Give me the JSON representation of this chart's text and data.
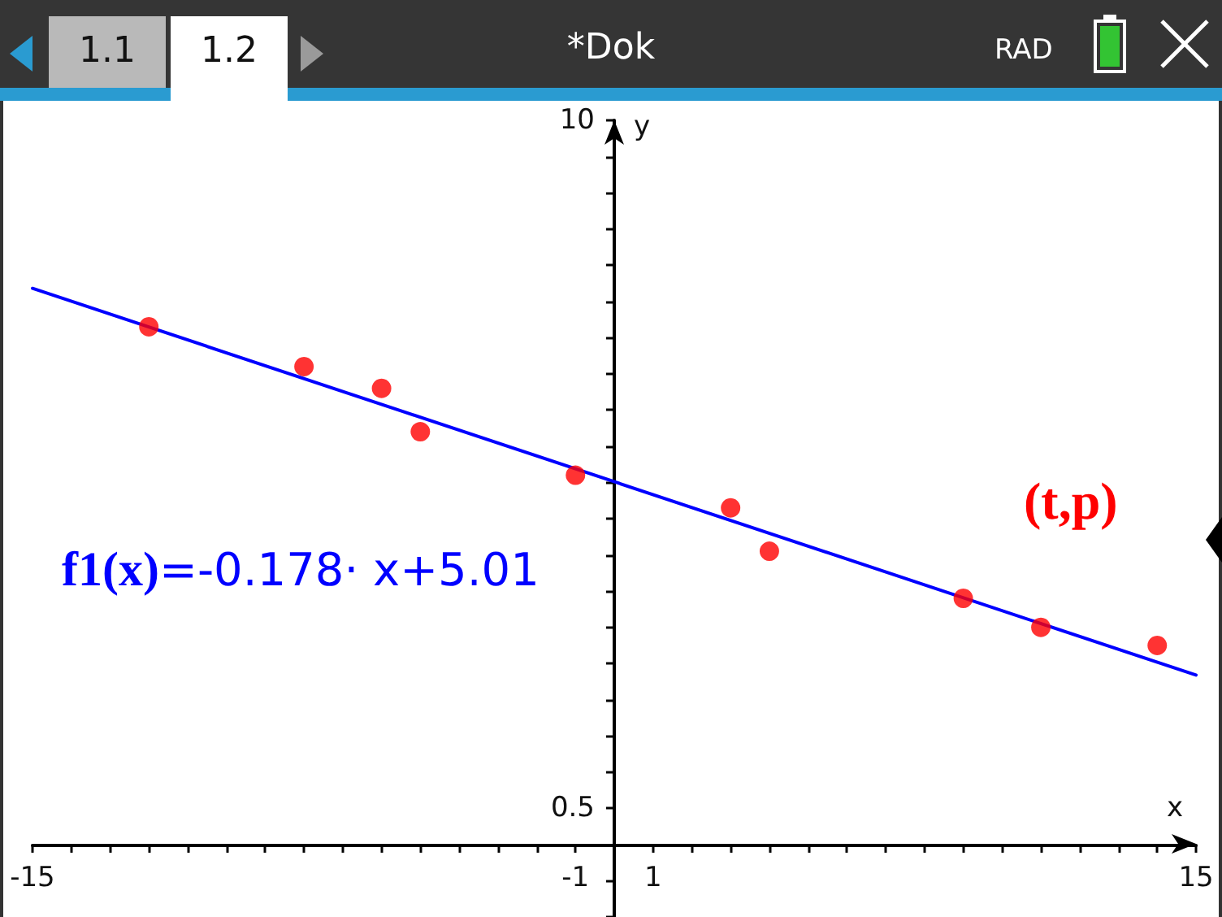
{
  "chart_data": {
    "type": "scatter",
    "title": "*Dok",
    "xlabel": "x",
    "ylabel": "y",
    "annotations": [
      "1.1",
      "1.2",
      "RAD"
    ],
    "xlim": [
      -15,
      15
    ],
    "ylim": [
      -1,
      10
    ],
    "xticks": [
      -15,
      {
        "value": -14,
        "label": null
      },
      {
        "value": -13,
        "label": null
      },
      {
        "value": -12,
        "label": null
      },
      {
        "value": -11,
        "label": null
      },
      {
        "value": -10,
        "label": null
      },
      {
        "value": -9,
        "label": null
      },
      {
        "value": -8,
        "label": null
      },
      {
        "value": -7,
        "label": null
      },
      {
        "value": -6,
        "label": null
      },
      {
        "value": -5,
        "label": null
      },
      {
        "value": -4,
        "label": null
      },
      {
        "value": -3,
        "label": null
      },
      {
        "value": -2,
        "label": null
      },
      -1,
      {
        "value": 0,
        "label": null
      },
      1,
      {
        "value": 2,
        "label": null
      },
      {
        "value": 3,
        "label": null
      },
      {
        "value": 4,
        "label": null
      },
      {
        "value": 5,
        "label": null
      },
      {
        "value": 6,
        "label": null
      },
      {
        "value": 7,
        "label": null
      },
      {
        "value": 8,
        "label": null
      },
      {
        "value": 9,
        "label": null
      },
      {
        "value": 10,
        "label": null
      },
      {
        "value": 11,
        "label": null
      },
      {
        "value": 12,
        "label": null
      },
      {
        "value": 13,
        "label": null
      },
      {
        "value": 14,
        "label": null
      },
      15
    ],
    "yticks": [
      {
        "value": -1,
        "label": null
      },
      {
        "value": -0.5,
        "label": null
      },
      {
        "value": 0,
        "label": null
      },
      0.5,
      {
        "value": 1,
        "label": null
      },
      {
        "value": 1.5,
        "label": null
      },
      {
        "value": 2,
        "label": null
      },
      {
        "value": 2.5,
        "label": null
      },
      {
        "value": 3,
        "label": null
      },
      {
        "value": 3.5,
        "label": null
      },
      {
        "value": 4,
        "label": null
      },
      {
        "value": 4.5,
        "label": null
      },
      {
        "value": 5,
        "label": null
      },
      {
        "value": 5.5,
        "label": null
      },
      {
        "value": 6,
        "label": null
      },
      {
        "value": 6.5,
        "label": null
      },
      {
        "value": 7,
        "label": null
      },
      {
        "value": 7.5,
        "label": null
      },
      {
        "value": 8,
        "label": null
      },
      {
        "value": 8.5,
        "label": null
      },
      {
        "value": 9,
        "label": null
      },
      {
        "value": 9.5,
        "label": null
      },
      10
    ],
    "grid": false,
    "legend": false,
    "series": [
      {
        "name": "f1(x)=-0.178· x+5.01",
        "type": "line",
        "color": "#0000ff",
        "marker": "none",
        "line_style": "solid",
        "x": [
          -15,
          15
        ],
        "values": [
          7.68,
          2.34
        ]
      },
      {
        "name": "(t,p)",
        "type": "scatter",
        "color": "#ff0000",
        "marker": "circle",
        "x": [
          -12,
          -8,
          -6,
          -5,
          -1,
          3,
          4,
          9,
          11,
          14
        ],
        "values": [
          7.15,
          6.6,
          6.3,
          5.7,
          5.1,
          4.65,
          4.05,
          3.4,
          3.0,
          2.75
        ]
      }
    ]
  }
}
